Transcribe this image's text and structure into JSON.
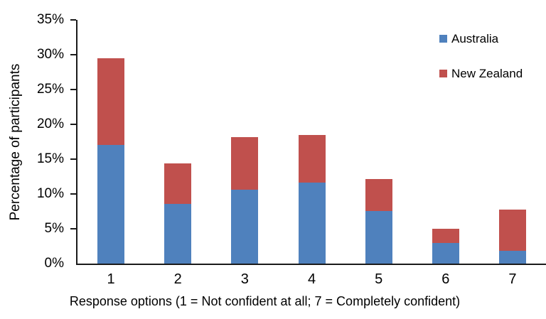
{
  "chart_data": {
    "type": "bar",
    "stacked": true,
    "title": "",
    "categories": [
      "1",
      "2",
      "3",
      "4",
      "5",
      "6",
      "7"
    ],
    "series": [
      {
        "name": "Australia",
        "color": "#4F81BD",
        "values": [
          17.0,
          8.6,
          10.6,
          11.6,
          7.6,
          3.0,
          1.8
        ]
      },
      {
        "name": "New Zealand",
        "color": "#C0504D",
        "values": [
          12.5,
          5.8,
          7.6,
          6.9,
          4.5,
          2.0,
          6.0
        ]
      }
    ],
    "xlabel": "Response options (1 = Not confident at all; 7 = Completely confident)",
    "ylabel": "Percentage of participants",
    "ylim": [
      0,
      35
    ],
    "yticks": [
      0,
      5,
      10,
      15,
      20,
      25,
      30,
      35
    ],
    "ytick_labels": [
      "0%",
      "5%",
      "10%",
      "15%",
      "20%",
      "25%",
      "30%",
      "35%"
    ],
    "legend_position": "top-right",
    "grid": false,
    "axis_color": "#1a1a1a",
    "background": "#ffffff"
  }
}
